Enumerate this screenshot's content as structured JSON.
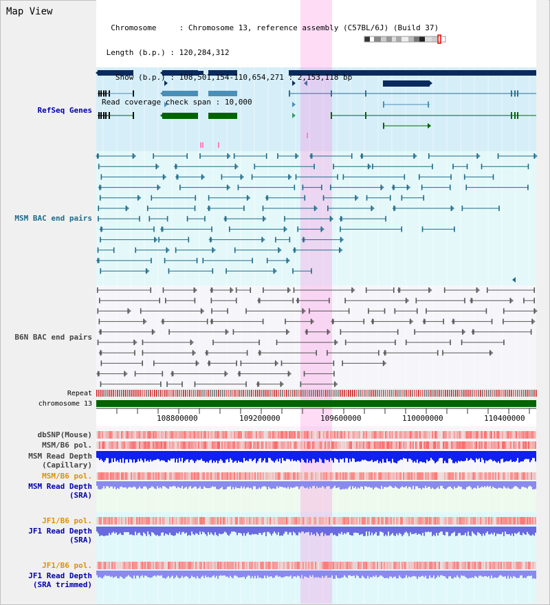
{
  "view_title": "Map View",
  "header": {
    "chromosome_key": "Chromosome",
    "chromosome_value": "Chromosome 13, reference assembly (C57BL/6J) (Build 37)",
    "length_key": "Length (b.p.)",
    "length_value": "120,284,312",
    "show_key": "Show (b.p.)",
    "show_value": "108,501,154-110,654,271 : 2,153,118 bp",
    "read_check_key": "Read coverage check span",
    "read_check_value": "10,000"
  },
  "tracks": {
    "refseq": "RefSeq Genes",
    "msm_bac": "MSM BAC end pairs",
    "b6n_bac": "B6N BAC end pairs",
    "repeat": "Repeat",
    "chromosome": "chromosome 13",
    "dbsnp": "dbSNP(Mouse)",
    "msm_b6_pol_1": "MSM/B6 pol.",
    "msm_read_depth_cap_1": "MSM Read Depth",
    "msm_read_depth_cap_2": "(Capillary)",
    "msm_b6_pol_2": "MSM/B6 pol.",
    "msm_read_depth_sra_1": "MSM Read Depth",
    "msm_read_depth_sra_2": "(SRA)",
    "jf1_b6_pol_1": "JF1/B6 pol.",
    "jf1_read_depth_sra_1": "JF1 Read Depth",
    "jf1_read_depth_sra_2": "(SRA)",
    "jf1_b6_pol_2": "JF1/B6 pol.",
    "jf1_read_depth_trim_1": "JF1 Read Depth",
    "jf1_read_depth_trim_2": "(SRA trimmed)"
  },
  "axis_ticks": [
    "108800000",
    "109200000",
    "109600000",
    "110000000",
    "110400000"
  ],
  "colors": {
    "gene_dark": "#0a2a5e",
    "gene_mid": "#4a8fb8",
    "gene_green": "#006400",
    "msm_pair": "#1d6a88",
    "b6n_pair": "#555555",
    "chromosome_bar": "#006400",
    "highlight": "#ff80e0",
    "label_blue": "#0000aa",
    "label_teal": "#1a6b8a",
    "label_gray": "#444444",
    "label_orange": "#e09000"
  }
}
